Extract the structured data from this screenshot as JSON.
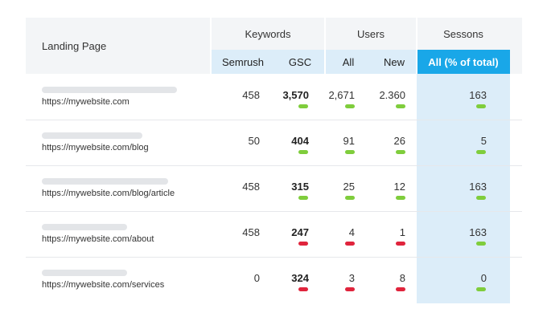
{
  "header": {
    "landing_page": "Landing Page",
    "keywords": "Keywords",
    "users": "Users",
    "sessions": "Sessons",
    "sub": {
      "semrush": "Semrush",
      "gsc": "GSC",
      "all": "All",
      "new": "New",
      "sessions_all": "All (% of total)"
    }
  },
  "rows": [
    {
      "url": "https://mywebsite.com",
      "semrush": "458",
      "gsc": "3,570",
      "users_all": "2,671",
      "users_new": "2.360",
      "sessions": "163",
      "trend": {
        "gsc": "up",
        "users_all": "up",
        "users_new": "up",
        "sessions": "up"
      }
    },
    {
      "url": "https://mywebsite.com/blog",
      "semrush": "50",
      "gsc": "404",
      "users_all": "91",
      "users_new": "26",
      "sessions": "5",
      "trend": {
        "gsc": "up",
        "users_all": "up",
        "users_new": "up",
        "sessions": "up"
      }
    },
    {
      "url": "https://mywebsite.com/blog/article",
      "semrush": "458",
      "gsc": "315",
      "users_all": "25",
      "users_new": "12",
      "sessions": "163",
      "trend": {
        "gsc": "up",
        "users_all": "up",
        "users_new": "up",
        "sessions": "up"
      }
    },
    {
      "url": "https://mywebsite.com/about",
      "semrush": "458",
      "gsc": "247",
      "users_all": "4",
      "users_new": "1",
      "sessions": "163",
      "trend": {
        "gsc": "down",
        "users_all": "down",
        "users_new": "down",
        "sessions": "up"
      }
    },
    {
      "url": "https://mywebsite.com/services",
      "semrush": "0",
      "gsc": "324",
      "users_all": "3",
      "users_new": "8",
      "sessions": "0",
      "trend": {
        "gsc": "down",
        "users_all": "down",
        "users_new": "down",
        "sessions": "up"
      }
    }
  ],
  "colors": {
    "accent": "#19a7e8",
    "highlight_column": "#dcedf9",
    "trend_up": "#7fcd3c",
    "trend_down": "#e0243c"
  }
}
